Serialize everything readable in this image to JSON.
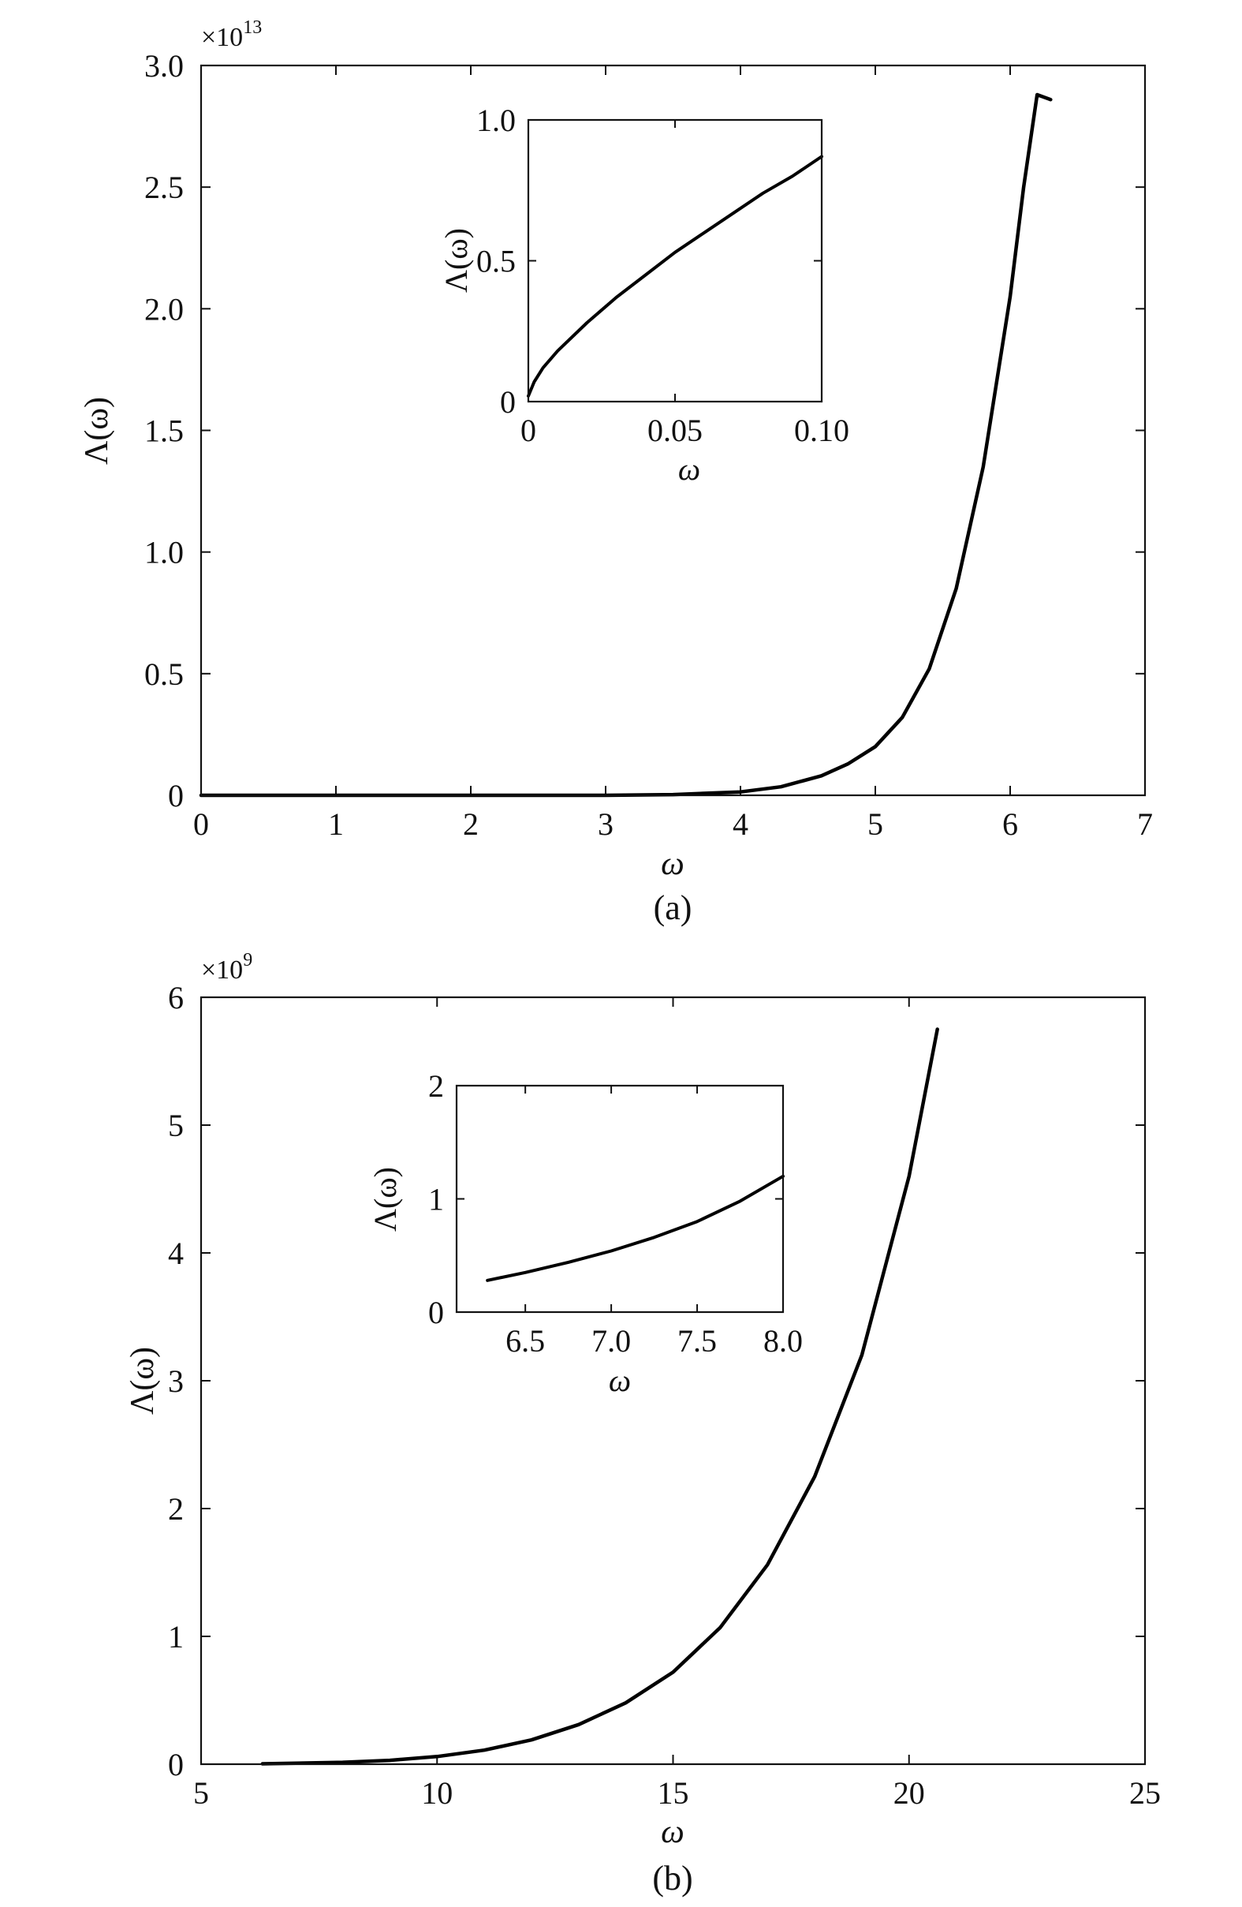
{
  "chart_data": [
    {
      "id": "a",
      "type": "line",
      "panel_label": "(a)",
      "xlabel": "ω",
      "ylabel": "Λ(ω)",
      "y_multiplier_label": "×10",
      "y_multiplier_exponent": "13",
      "xlim": [
        0,
        7
      ],
      "ylim": [
        0,
        3.0
      ],
      "x_ticks": [
        0,
        1,
        2,
        3,
        4,
        5,
        6,
        7
      ],
      "x_tick_labels": [
        "0",
        "1",
        "2",
        "3",
        "4",
        "5",
        "6",
        "7"
      ],
      "y_ticks": [
        0,
        0.5,
        1.0,
        1.5,
        2.0,
        2.5,
        3.0
      ],
      "y_tick_labels": [
        "0",
        "0.5",
        "1.0",
        "1.5",
        "2.0",
        "2.5",
        "3.0"
      ],
      "grid": false,
      "series": [
        {
          "x": [
            0,
            1,
            2,
            3,
            3.5,
            4.0,
            4.3,
            4.6,
            4.8,
            5.0,
            5.2,
            5.4,
            5.6,
            5.8,
            6.0,
            6.1,
            6.2,
            6.3
          ],
          "y": [
            0,
            0,
            0,
            0,
            0.003,
            0.014,
            0.035,
            0.08,
            0.13,
            0.2,
            0.32,
            0.52,
            0.85,
            1.35,
            2.05,
            2.5,
            2.88,
            2.86
          ]
        }
      ],
      "inset": {
        "xlabel": "ω",
        "ylabel": "Λ(ω)",
        "xlim": [
          0,
          0.1
        ],
        "ylim": [
          0,
          1.0
        ],
        "x_ticks": [
          0,
          0.05,
          0.1
        ],
        "x_tick_labels": [
          "0",
          "0.05",
          "0.10"
        ],
        "y_ticks": [
          0,
          0.5,
          1.0
        ],
        "y_tick_labels": [
          "0",
          "0.5",
          "1.0"
        ],
        "series": [
          {
            "x": [
              0,
              0.002,
              0.005,
              0.01,
              0.02,
              0.03,
              0.04,
              0.05,
              0.06,
              0.07,
              0.08,
              0.09,
              0.1
            ],
            "y": [
              0.02,
              0.07,
              0.12,
              0.18,
              0.28,
              0.37,
              0.45,
              0.53,
              0.6,
              0.67,
              0.74,
              0.8,
              0.87
            ]
          }
        ]
      }
    },
    {
      "id": "b",
      "type": "line",
      "panel_label": "(b)",
      "xlabel": "ω",
      "ylabel": "Λ(ω)",
      "y_multiplier_label": "×10",
      "y_multiplier_exponent": "9",
      "xlim": [
        5,
        25
      ],
      "ylim": [
        0,
        6
      ],
      "x_ticks": [
        5,
        10,
        15,
        20,
        25
      ],
      "x_tick_labels": [
        "5",
        "10",
        "15",
        "20",
        "25"
      ],
      "y_ticks": [
        0,
        1,
        2,
        3,
        4,
        5,
        6
      ],
      "y_tick_labels": [
        "0",
        "1",
        "2",
        "3",
        "4",
        "5",
        "6"
      ],
      "grid": false,
      "series": [
        {
          "x": [
            6.3,
            8,
            9,
            10,
            11,
            12,
            13,
            14,
            15,
            16,
            17,
            18,
            19,
            20,
            20.6
          ],
          "y": [
            0.003,
            0.015,
            0.03,
            0.06,
            0.11,
            0.19,
            0.31,
            0.48,
            0.72,
            1.07,
            1.56,
            2.25,
            3.2,
            4.6,
            5.75
          ]
        }
      ],
      "inset": {
        "xlabel": "ω",
        "ylabel": "Λ(ω)",
        "xlim": [
          6.1,
          8.0
        ],
        "ylim": [
          0,
          2
        ],
        "x_ticks": [
          6.5,
          7.0,
          7.5,
          8.0
        ],
        "x_tick_labels": [
          "6.5",
          "7.0",
          "7.5",
          "8.0"
        ],
        "y_ticks": [
          0,
          1,
          2
        ],
        "y_tick_labels": [
          "0",
          "1",
          "2"
        ],
        "series": [
          {
            "x": [
              6.28,
              6.5,
              6.75,
              7.0,
              7.25,
              7.5,
              7.75,
              8.0
            ],
            "y": [
              0.28,
              0.35,
              0.44,
              0.54,
              0.66,
              0.8,
              0.98,
              1.2
            ]
          }
        ]
      }
    }
  ]
}
